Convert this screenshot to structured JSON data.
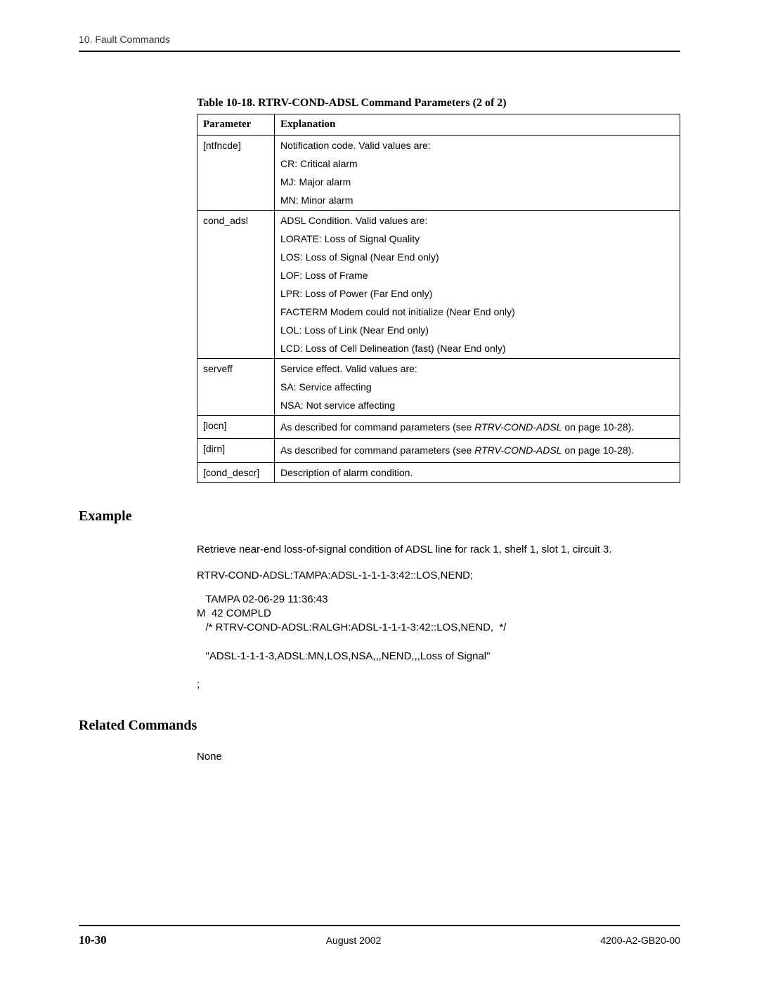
{
  "header": {
    "breadcrumb": "10. Fault Commands"
  },
  "tableCaption": "Table 10-18.  RTRV-COND-ADSL Command Parameters (2 of 2)",
  "table": {
    "headers": {
      "col1": "Parameter",
      "col2": "Explanation"
    },
    "rows": {
      "r0": {
        "param": "[ntfncde]",
        "l0": "Notification code. Valid values are:",
        "l1": "CR: Critical alarm",
        "l2": "MJ: Major alarm",
        "l3": "MN: Minor alarm"
      },
      "r1": {
        "param": "cond_adsl",
        "l0": "ADSL Condition. Valid values are:",
        "l1": "LORATE: Loss of Signal Quality",
        "l2": "LOS: Loss of Signal (Near End only)",
        "l3": "LOF: Loss of Frame",
        "l4": "LPR: Loss of Power (Far End only)",
        "l5": "FACTERM Modem could not initialize (Near End only)",
        "l6": "LOL: Loss of Link (Near End only)",
        "l7": "LCD: Loss of Cell Delineation (fast) (Near End only)"
      },
      "r2": {
        "param": "serveff",
        "l0": "Service effect. Valid values are:",
        "l1": "SA: Service affecting",
        "l2": "NSA: Not service affecting"
      },
      "r3": {
        "param": "[locn]",
        "text": "As described for command parameters (see ",
        "italic": "RTRV-COND-ADSL",
        "tail": " on page 10-28)."
      },
      "r4": {
        "param": "[dirn]",
        "text": "As described for command parameters (see ",
        "italic": "RTRV-COND-ADSL",
        "tail": " on page 10-28)."
      },
      "r5": {
        "param": "[cond_descr]",
        "text": "Description of alarm condition."
      }
    }
  },
  "example": {
    "heading": "Example",
    "intro": "Retrieve near-end loss-of-signal condition of ADSL line for rack 1, shelf 1, slot 1, circuit 3.",
    "cmd": "RTRV-COND-ADSL:TAMPA:ADSL-1-1-1-3:42::LOS,NEND;",
    "out1": "   TAMPA 02-06-29 11:36:43",
    "out2": "M  42 COMPLD",
    "out3": "   /* RTRV-COND-ADSL:RALGH:ADSL-1-1-1-3:42::LOS,NEND,  */",
    "out4": "   \"ADSL-1-1-1-3,ADSL:MN,LOS,NSA,,,NEND,,,Loss of Signal\"",
    "out5": ";"
  },
  "related": {
    "heading": "Related Commands",
    "body": "None"
  },
  "footer": {
    "pageNum": "10-30",
    "date": "August 2002",
    "doc": "4200-A2-GB20-00"
  }
}
